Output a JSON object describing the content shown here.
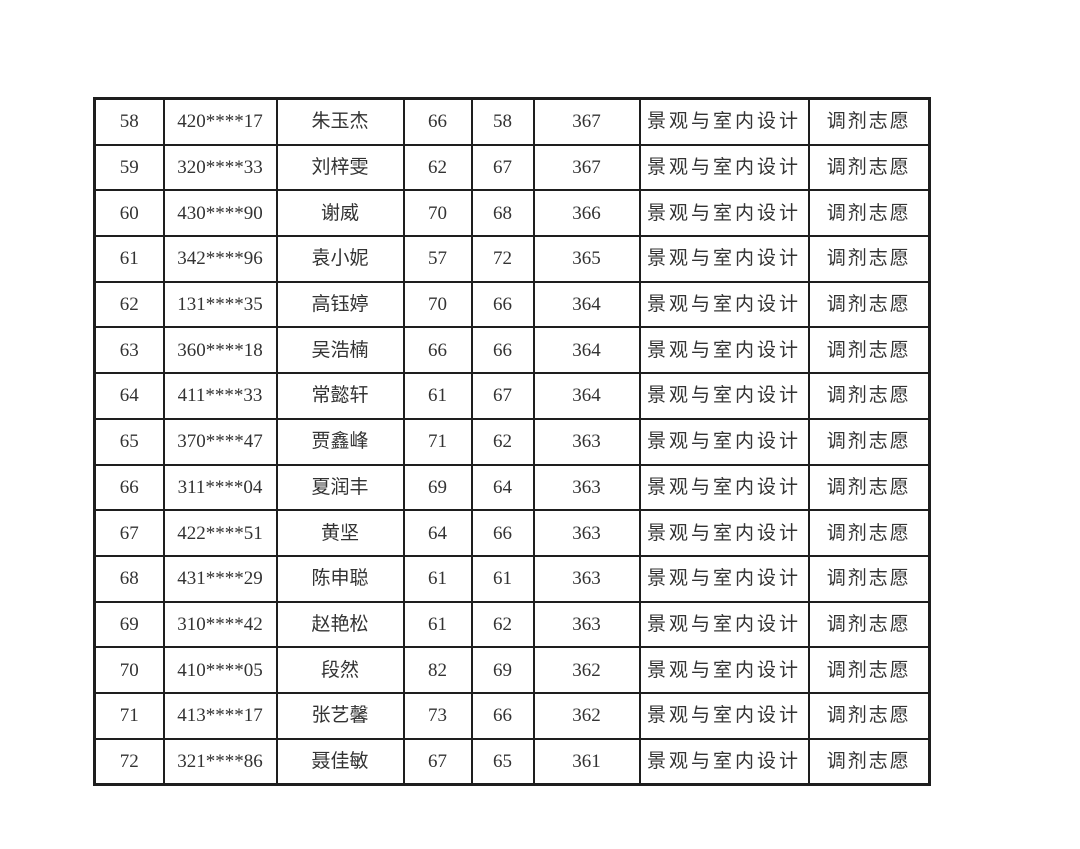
{
  "colors": {
    "border": "#1e1e1e",
    "text": "#333333",
    "background": "#ffffff"
  },
  "table": {
    "column_keys": [
      "rank",
      "id_masked",
      "name",
      "score1",
      "score2",
      "total",
      "major",
      "preference"
    ],
    "rows": [
      {
        "rank": "58",
        "id_masked": "420****17",
        "name": "朱玉杰",
        "score1": "66",
        "score2": "58",
        "total": "367",
        "major": "景观与室内设计",
        "preference": "调剂志愿"
      },
      {
        "rank": "59",
        "id_masked": "320****33",
        "name": "刘梓雯",
        "score1": "62",
        "score2": "67",
        "total": "367",
        "major": "景观与室内设计",
        "preference": "调剂志愿"
      },
      {
        "rank": "60",
        "id_masked": "430****90",
        "name": "谢威",
        "score1": "70",
        "score2": "68",
        "total": "366",
        "major": "景观与室内设计",
        "preference": "调剂志愿"
      },
      {
        "rank": "61",
        "id_masked": "342****96",
        "name": "袁小妮",
        "score1": "57",
        "score2": "72",
        "total": "365",
        "major": "景观与室内设计",
        "preference": "调剂志愿"
      },
      {
        "rank": "62",
        "id_masked": "131****35",
        "name": "高钰婷",
        "score1": "70",
        "score2": "66",
        "total": "364",
        "major": "景观与室内设计",
        "preference": "调剂志愿"
      },
      {
        "rank": "63",
        "id_masked": "360****18",
        "name": "吴浩楠",
        "score1": "66",
        "score2": "66",
        "total": "364",
        "major": "景观与室内设计",
        "preference": "调剂志愿"
      },
      {
        "rank": "64",
        "id_masked": "411****33",
        "name": "常懿轩",
        "score1": "61",
        "score2": "67",
        "total": "364",
        "major": "景观与室内设计",
        "preference": "调剂志愿"
      },
      {
        "rank": "65",
        "id_masked": "370****47",
        "name": "贾鑫峰",
        "score1": "71",
        "score2": "62",
        "total": "363",
        "major": "景观与室内设计",
        "preference": "调剂志愿"
      },
      {
        "rank": "66",
        "id_masked": "311****04",
        "name": "夏润丰",
        "score1": "69",
        "score2": "64",
        "total": "363",
        "major": "景观与室内设计",
        "preference": "调剂志愿"
      },
      {
        "rank": "67",
        "id_masked": "422****51",
        "name": "黄坚",
        "score1": "64",
        "score2": "66",
        "total": "363",
        "major": "景观与室内设计",
        "preference": "调剂志愿"
      },
      {
        "rank": "68",
        "id_masked": "431****29",
        "name": "陈申聪",
        "score1": "61",
        "score2": "61",
        "total": "363",
        "major": "景观与室内设计",
        "preference": "调剂志愿"
      },
      {
        "rank": "69",
        "id_masked": "310****42",
        "name": "赵艳松",
        "score1": "61",
        "score2": "62",
        "total": "363",
        "major": "景观与室内设计",
        "preference": "调剂志愿"
      },
      {
        "rank": "70",
        "id_masked": "410****05",
        "name": "段然",
        "score1": "82",
        "score2": "69",
        "total": "362",
        "major": "景观与室内设计",
        "preference": "调剂志愿"
      },
      {
        "rank": "71",
        "id_masked": "413****17",
        "name": "张艺馨",
        "score1": "73",
        "score2": "66",
        "total": "362",
        "major": "景观与室内设计",
        "preference": "调剂志愿"
      },
      {
        "rank": "72",
        "id_masked": "321****86",
        "name": "聂佳敏",
        "score1": "67",
        "score2": "65",
        "total": "361",
        "major": "景观与室内设计",
        "preference": "调剂志愿"
      }
    ]
  }
}
